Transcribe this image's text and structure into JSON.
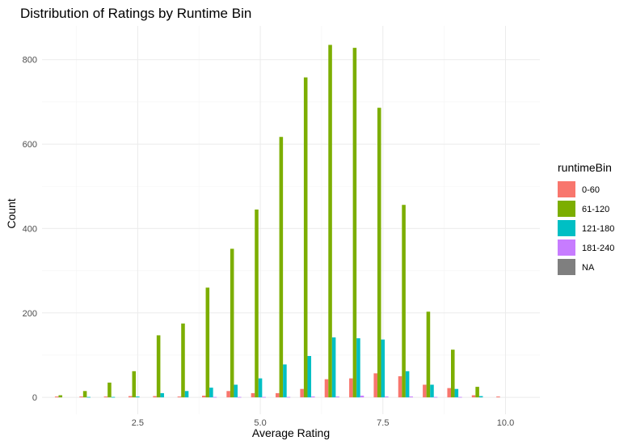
{
  "chart_data": {
    "type": "bar",
    "title": "Distribution of Ratings by Runtime Bin",
    "xlabel": "Average Rating",
    "ylabel": "Count",
    "xlim": [
      0.55,
      10.7
    ],
    "ylim": [
      -40,
      880
    ],
    "x_ticks": [
      2.5,
      5.0,
      7.5,
      10.0
    ],
    "x_tick_labels": [
      "2.5",
      "5.0",
      "7.5",
      "10.0"
    ],
    "y_ticks": [
      0,
      200,
      400,
      600,
      800
    ],
    "y_tick_labels": [
      "0",
      "200",
      "400",
      "600",
      "800"
    ],
    "grid": true,
    "legend_position": "right",
    "legend_title": "runtimeBin",
    "bin_width": 0.5,
    "x": [
      1.0,
      1.5,
      2.0,
      2.5,
      3.0,
      3.5,
      4.0,
      4.5,
      5.0,
      5.5,
      6.0,
      6.5,
      7.0,
      7.5,
      8.0,
      8.5,
      9.0,
      9.5,
      10.0
    ],
    "series": [
      {
        "name": "0-60",
        "color": "#F8766D",
        "values": [
          2,
          2,
          2,
          3,
          3,
          2,
          4,
          15,
          10,
          10,
          20,
          43,
          45,
          57,
          50,
          30,
          22,
          5,
          2
        ]
      },
      {
        "name": "61-120",
        "color": "#7CAE00",
        "values": [
          5,
          15,
          35,
          62,
          147,
          175,
          260,
          352,
          445,
          617,
          758,
          835,
          828,
          686,
          456,
          203,
          113,
          25,
          0
        ]
      },
      {
        "name": "121-180",
        "color": "#00BFC4",
        "values": [
          0,
          1,
          1,
          2,
          10,
          15,
          23,
          30,
          45,
          78,
          98,
          142,
          140,
          137,
          62,
          30,
          20,
          3,
          0
        ]
      },
      {
        "name": "181-240",
        "color": "#C77CFF",
        "values": [
          0,
          0,
          0,
          0,
          0,
          0,
          1,
          1,
          1,
          1,
          2,
          2,
          4,
          2,
          2,
          1,
          1,
          0,
          0
        ]
      },
      {
        "name": "NA",
        "color": "#7F7F7F",
        "values": [
          0,
          0,
          0,
          0,
          0,
          0,
          0,
          0,
          0,
          0,
          0,
          0,
          0,
          0,
          0,
          0,
          0,
          0,
          0
        ]
      }
    ]
  }
}
